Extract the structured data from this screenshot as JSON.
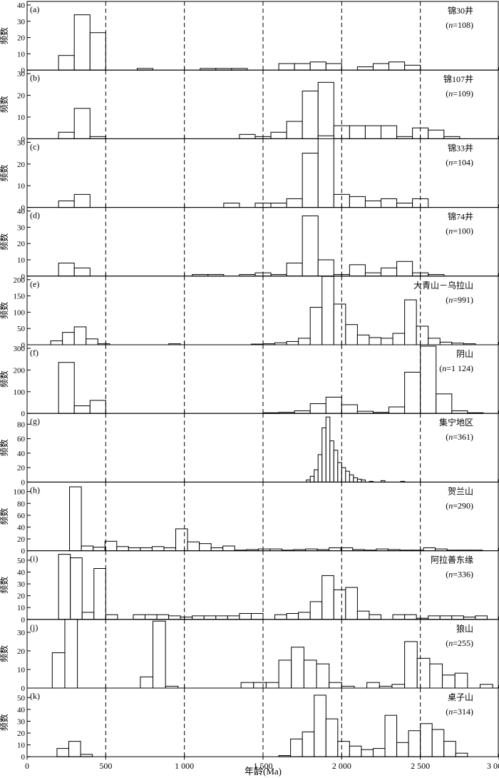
{
  "chart_data": {
    "type": "bar",
    "xlabel": "年龄(Ma)",
    "ylabel": "频数",
    "x_ticks": [
      0,
      500,
      1000,
      1500,
      2000,
      2500,
      3000
    ],
    "x_tick_labels": [
      "0",
      "500",
      "1 000",
      "1 500",
      "2 000",
      "2 500",
      "3 000"
    ],
    "xlim": [
      0,
      3000
    ],
    "reference_lines": [
      500,
      1000,
      1500,
      2000,
      2500
    ],
    "panels": [
      {
        "letter": "(a)",
        "name": "锦30井",
        "n_prefix": "n",
        "n_value": "=108",
        "ylim": [
          0,
          40
        ],
        "yticks": [
          0,
          10,
          20,
          30,
          40
        ],
        "bin_width": 100,
        "bars": [
          [
            200,
            9
          ],
          [
            300,
            34
          ],
          [
            400,
            23
          ],
          [
            700,
            1
          ],
          [
            1100,
            1
          ],
          [
            1200,
            1
          ],
          [
            1300,
            1
          ],
          [
            1600,
            4
          ],
          [
            1700,
            4
          ],
          [
            1800,
            5
          ],
          [
            1900,
            4
          ],
          [
            2100,
            2
          ],
          [
            2200,
            4
          ],
          [
            2300,
            5
          ],
          [
            2400,
            3
          ]
        ]
      },
      {
        "letter": "(b)",
        "name": "锦107井",
        "n_prefix": "n",
        "n_value": "=109",
        "ylim": [
          0,
          30
        ],
        "yticks": [
          0,
          10,
          20,
          30
        ],
        "bin_width": 100,
        "bars": [
          [
            200,
            3
          ],
          [
            300,
            14
          ],
          [
            400,
            1
          ],
          [
            1350,
            2
          ],
          [
            1450,
            1
          ],
          [
            1550,
            3
          ],
          [
            1650,
            8
          ],
          [
            1750,
            22
          ],
          [
            1850,
            26
          ],
          [
            1950,
            6
          ],
          [
            2050,
            6
          ],
          [
            2150,
            6
          ],
          [
            2250,
            6
          ],
          [
            2350,
            1
          ],
          [
            2450,
            5
          ],
          [
            2550,
            4
          ],
          [
            2650,
            1
          ]
        ]
      },
      {
        "letter": "(c)",
        "name": "锦33井",
        "n_prefix": "n",
        "n_value": "=104",
        "ylim": [
          0,
          30
        ],
        "yticks": [
          0,
          10,
          20,
          30
        ],
        "bin_width": 100,
        "bars": [
          [
            200,
            3
          ],
          [
            300,
            6
          ],
          [
            1250,
            2
          ],
          [
            1450,
            2
          ],
          [
            1550,
            2
          ],
          [
            1650,
            4
          ],
          [
            1750,
            25
          ],
          [
            1850,
            33
          ],
          [
            1950,
            6
          ],
          [
            2050,
            5
          ],
          [
            2150,
            3
          ],
          [
            2250,
            4
          ],
          [
            2350,
            2
          ],
          [
            2450,
            4
          ]
        ]
      },
      {
        "letter": "(d)",
        "name": "锦74井",
        "n_prefix": "n",
        "n_value": "=100",
        "ylim": [
          0,
          40
        ],
        "yticks": [
          0,
          10,
          20,
          30,
          40
        ],
        "bin_width": 100,
        "bars": [
          [
            200,
            8
          ],
          [
            300,
            5
          ],
          [
            1050,
            1
          ],
          [
            1150,
            1
          ],
          [
            1350,
            1
          ],
          [
            1450,
            2
          ],
          [
            1550,
            1
          ],
          [
            1650,
            8
          ],
          [
            1750,
            37
          ],
          [
            1850,
            10
          ],
          [
            1950,
            1
          ],
          [
            2050,
            7
          ],
          [
            2150,
            2
          ],
          [
            2250,
            5
          ],
          [
            2350,
            9
          ],
          [
            2450,
            2
          ],
          [
            2550,
            1
          ]
        ]
      },
      {
        "letter": "(e)",
        "name": "大青山－乌拉山",
        "n_prefix": "n",
        "n_value": "=991",
        "ylim": [
          0,
          200
        ],
        "yticks": [
          0,
          50,
          100,
          150,
          200
        ],
        "bin_width": 75,
        "bars": [
          [
            150,
            12
          ],
          [
            225,
            38
          ],
          [
            300,
            55
          ],
          [
            375,
            18
          ],
          [
            450,
            3
          ],
          [
            900,
            3
          ],
          [
            1425,
            2
          ],
          [
            1500,
            3
          ],
          [
            1575,
            6
          ],
          [
            1650,
            10
          ],
          [
            1725,
            20
          ],
          [
            1800,
            115
          ],
          [
            1875,
            210
          ],
          [
            1950,
            125
          ],
          [
            2025,
            62
          ],
          [
            2100,
            30
          ],
          [
            2175,
            22
          ],
          [
            2250,
            20
          ],
          [
            2325,
            35
          ],
          [
            2400,
            138
          ],
          [
            2475,
            57
          ],
          [
            2550,
            20
          ],
          [
            2625,
            8
          ],
          [
            2700,
            5
          ],
          [
            2775,
            3
          ]
        ]
      },
      {
        "letter": "(f)",
        "name": "阴山",
        "n_prefix": "n",
        "n_value": "=1 124",
        "ylim": [
          0,
          300
        ],
        "yticks": [
          0,
          100,
          200,
          300
        ],
        "bin_width": 100,
        "bars": [
          [
            200,
            235
          ],
          [
            300,
            35
          ],
          [
            400,
            60
          ],
          [
            1500,
            3
          ],
          [
            1600,
            5
          ],
          [
            1700,
            12
          ],
          [
            1800,
            45
          ],
          [
            1900,
            75
          ],
          [
            2000,
            40
          ],
          [
            2100,
            10
          ],
          [
            2200,
            5
          ],
          [
            2300,
            30
          ],
          [
            2400,
            190
          ],
          [
            2500,
            310
          ],
          [
            2600,
            90
          ],
          [
            2700,
            12
          ],
          [
            2800,
            3
          ]
        ]
      },
      {
        "letter": "(g)",
        "name": "集宁地区",
        "n_prefix": "n",
        "n_value": "=361",
        "ylim": [
          0,
          90
        ],
        "yticks": [
          0,
          20,
          40,
          60,
          80
        ],
        "bin_width": 25,
        "bars": [
          [
            1775,
            3
          ],
          [
            1800,
            8
          ],
          [
            1825,
            17
          ],
          [
            1850,
            38
          ],
          [
            1875,
            75
          ],
          [
            1900,
            90
          ],
          [
            1925,
            57
          ],
          [
            1950,
            44
          ],
          [
            1975,
            27
          ],
          [
            2000,
            20
          ],
          [
            2025,
            15
          ],
          [
            2050,
            10
          ],
          [
            2075,
            6
          ],
          [
            2100,
            4
          ],
          [
            2125,
            3
          ],
          [
            2175,
            1
          ],
          [
            2250,
            2
          ],
          [
            2375,
            1
          ]
        ]
      },
      {
        "letter": "(h)",
        "name": "贺兰山",
        "n_prefix": "n",
        "n_value": "=290",
        "ylim": [
          0,
          110
        ],
        "yticks": [
          0,
          20,
          40,
          60,
          80,
          100
        ],
        "bin_width": 75,
        "bars": [
          [
            270,
            108
          ],
          [
            345,
            8
          ],
          [
            420,
            6
          ],
          [
            495,
            16
          ],
          [
            570,
            7
          ],
          [
            645,
            5
          ],
          [
            720,
            5
          ],
          [
            795,
            7
          ],
          [
            870,
            5
          ],
          [
            945,
            37
          ],
          [
            1020,
            15
          ],
          [
            1095,
            12
          ],
          [
            1170,
            5
          ],
          [
            1245,
            8
          ],
          [
            1320,
            1
          ],
          [
            1395,
            2
          ],
          [
            1470,
            3
          ],
          [
            1545,
            3
          ],
          [
            1620,
            1
          ],
          [
            1695,
            2
          ],
          [
            1770,
            3
          ],
          [
            1845,
            2
          ],
          [
            1920,
            5
          ],
          [
            1995,
            5
          ],
          [
            2070,
            2
          ],
          [
            2145,
            1
          ],
          [
            2220,
            3
          ],
          [
            2295,
            2
          ],
          [
            2370,
            1
          ],
          [
            2445,
            1
          ],
          [
            2520,
            5
          ],
          [
            2595,
            3
          ],
          [
            2670,
            1
          ],
          [
            2745,
            1
          ],
          [
            2820,
            1
          ]
        ]
      },
      {
        "letter": "(i)",
        "name": "阿拉善东缘",
        "n_prefix": "n",
        "n_value": "=336",
        "ylim": [
          0,
          55
        ],
        "yticks": [
          0,
          10,
          20,
          30,
          40,
          50
        ],
        "bin_width": 75,
        "bars": [
          [
            200,
            55
          ],
          [
            275,
            52
          ],
          [
            350,
            6
          ],
          [
            425,
            43
          ],
          [
            500,
            4
          ],
          [
            675,
            4
          ],
          [
            750,
            4
          ],
          [
            825,
            4
          ],
          [
            900,
            3
          ],
          [
            975,
            2
          ],
          [
            1050,
            3
          ],
          [
            1125,
            3
          ],
          [
            1200,
            3
          ],
          [
            1275,
            3
          ],
          [
            1350,
            5
          ],
          [
            1425,
            5
          ],
          [
            1575,
            4
          ],
          [
            1650,
            5
          ],
          [
            1725,
            6
          ],
          [
            1800,
            15
          ],
          [
            1875,
            37
          ],
          [
            1950,
            25
          ],
          [
            2025,
            27
          ],
          [
            2100,
            7
          ],
          [
            2175,
            4
          ],
          [
            2325,
            4
          ],
          [
            2400,
            4
          ],
          [
            2475,
            1
          ],
          [
            2550,
            3
          ],
          [
            2625,
            3
          ],
          [
            2700,
            3
          ],
          [
            2775,
            2
          ],
          [
            2850,
            3
          ]
        ]
      },
      {
        "letter": "(j)",
        "name": "狼山",
        "n_prefix": "n",
        "n_value": "=255",
        "ylim": [
          0,
          35
        ],
        "yticks": [
          0,
          10,
          20,
          30
        ],
        "bin_width": 80,
        "bars": [
          [
            160,
            19
          ],
          [
            240,
            37
          ],
          [
            720,
            6
          ],
          [
            800,
            36
          ],
          [
            880,
            1
          ],
          [
            1360,
            3
          ],
          [
            1440,
            3
          ],
          [
            1520,
            3
          ],
          [
            1600,
            15
          ],
          [
            1680,
            22
          ],
          [
            1760,
            15
          ],
          [
            1840,
            13
          ],
          [
            1920,
            3
          ],
          [
            2000,
            1
          ],
          [
            2160,
            3
          ],
          [
            2240,
            1
          ],
          [
            2320,
            2
          ],
          [
            2400,
            25
          ],
          [
            2480,
            16
          ],
          [
            2560,
            13
          ],
          [
            2640,
            7
          ],
          [
            2720,
            8
          ],
          [
            2880,
            2
          ]
        ]
      },
      {
        "letter": "(k)",
        "name": "桌子山",
        "n_prefix": "n",
        "n_value": "=314",
        "ylim": [
          0,
          55
        ],
        "yticks": [
          0,
          10,
          20,
          30,
          40,
          50
        ],
        "bin_width": 75,
        "bars": [
          [
            190,
            7
          ],
          [
            265,
            13
          ],
          [
            340,
            2
          ],
          [
            1600,
            1
          ],
          [
            1675,
            15
          ],
          [
            1750,
            21
          ],
          [
            1825,
            52
          ],
          [
            1900,
            32
          ],
          [
            1975,
            13
          ],
          [
            2050,
            9
          ],
          [
            2125,
            6
          ],
          [
            2200,
            7
          ],
          [
            2275,
            35
          ],
          [
            2350,
            12
          ],
          [
            2425,
            22
          ],
          [
            2500,
            28
          ],
          [
            2575,
            23
          ],
          [
            2650,
            13
          ],
          [
            2725,
            3
          ]
        ]
      }
    ]
  }
}
